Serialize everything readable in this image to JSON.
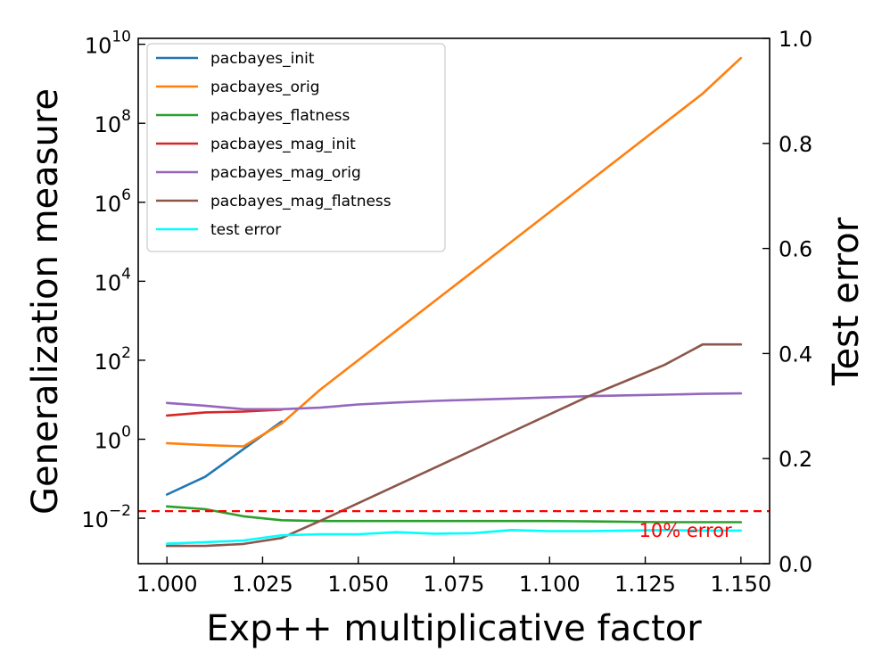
{
  "chart_data": {
    "type": "line",
    "xlabel": "Exp++ multiplicative factor",
    "ylabel": "Generalization measure",
    "y2label": "Test error",
    "x_ticks": [
      "1.000",
      "1.025",
      "1.050",
      "1.075",
      "1.100",
      "1.125",
      "1.150"
    ],
    "x_tick_values": [
      1.0,
      1.025,
      1.05,
      1.075,
      1.1,
      1.125,
      1.15
    ],
    "y_ticks": [
      {
        "base": "10",
        "exp": "10",
        "value": 10
      },
      {
        "base": "10",
        "exp": "8",
        "value": 8
      },
      {
        "base": "10",
        "exp": "6",
        "value": 6
      },
      {
        "base": "10",
        "exp": "4",
        "value": 4
      },
      {
        "base": "10",
        "exp": "2",
        "value": 2
      },
      {
        "base": "10",
        "exp": "0",
        "value": 0
      },
      {
        "base": "10",
        "exp": "−2",
        "value": -2
      }
    ],
    "y2_ticks": [
      "1.0",
      "0.8",
      "0.6",
      "0.4",
      "0.2",
      "0.0"
    ],
    "y2_tick_values": [
      1.0,
      0.8,
      0.6,
      0.4,
      0.2,
      0.0
    ],
    "xlim": [
      0.9925,
      1.1575
    ],
    "ylim_log10": [
      -3.15,
      10.15
    ],
    "y_scale": "log",
    "y2lim": [
      0.0,
      1.0
    ],
    "legend_position": "top-left",
    "grid": false,
    "series": [
      {
        "name": "pacbayes_init",
        "color": "#1f77b4",
        "axis": "left",
        "x": [
          1.0,
          1.01,
          1.02,
          1.03
        ],
        "log10_y": [
          -1.4,
          -0.95,
          -0.25,
          0.45
        ]
      },
      {
        "name": "pacbayes_orig",
        "color": "#ff7f0e",
        "axis": "left",
        "x": [
          1.0,
          1.01,
          1.02,
          1.03,
          1.04,
          1.05,
          1.06,
          1.07,
          1.08,
          1.09,
          1.1,
          1.11,
          1.12,
          1.13,
          1.14,
          1.15
        ],
        "log10_y": [
          -0.1,
          -0.15,
          -0.18,
          0.4,
          1.25,
          2.0,
          2.75,
          3.5,
          4.25,
          5.0,
          5.75,
          6.5,
          7.25,
          8.0,
          8.75,
          9.65
        ]
      },
      {
        "name": "pacbayes_flatness",
        "color": "#2ca02c",
        "axis": "left",
        "x": [
          1.0,
          1.01,
          1.02,
          1.03,
          1.04,
          1.05,
          1.06,
          1.07,
          1.08,
          1.09,
          1.1,
          1.11,
          1.12,
          1.13,
          1.14,
          1.15
        ],
        "log10_y": [
          -1.7,
          -1.77,
          -1.95,
          -2.05,
          -2.07,
          -2.07,
          -2.07,
          -2.07,
          -2.07,
          -2.07,
          -2.07,
          -2.08,
          -2.09,
          -2.1,
          -2.1,
          -2.1
        ]
      },
      {
        "name": "pacbayes_mag_init",
        "color": "#d62728",
        "axis": "left",
        "x": [
          1.0,
          1.01,
          1.02,
          1.03
        ],
        "log10_y": [
          0.6,
          0.68,
          0.7,
          0.75
        ]
      },
      {
        "name": "pacbayes_mag_orig",
        "color": "#9467bd",
        "axis": "left",
        "x": [
          1.0,
          1.01,
          1.02,
          1.03,
          1.04,
          1.05,
          1.06,
          1.07,
          1.08,
          1.09,
          1.1,
          1.11,
          1.12,
          1.13,
          1.14,
          1.15
        ],
        "log10_y": [
          0.92,
          0.85,
          0.76,
          0.76,
          0.8,
          0.88,
          0.93,
          0.97,
          1.0,
          1.03,
          1.06,
          1.09,
          1.11,
          1.13,
          1.15,
          1.16
        ]
      },
      {
        "name": "pacbayes_mag_flatness",
        "color": "#8c564b",
        "axis": "left",
        "x": [
          1.0,
          1.01,
          1.02,
          1.03,
          1.04,
          1.05,
          1.06,
          1.07,
          1.08,
          1.09,
          1.1,
          1.11,
          1.12,
          1.13,
          1.14,
          1.15
        ],
        "log10_y": [
          -2.7,
          -2.7,
          -2.65,
          -2.5,
          -2.07,
          -1.62,
          -1.17,
          -0.72,
          -0.27,
          0.18,
          0.63,
          1.08,
          1.48,
          1.88,
          2.4,
          2.4
        ]
      },
      {
        "name": "test error",
        "color": "#00ffff",
        "axis": "right",
        "x": [
          1.0,
          1.01,
          1.02,
          1.03,
          1.04,
          1.05,
          1.06,
          1.07,
          1.08,
          1.09,
          1.1,
          1.11,
          1.12,
          1.13,
          1.14,
          1.15
        ],
        "y": [
          0.038,
          0.041,
          0.044,
          0.054,
          0.056,
          0.056,
          0.06,
          0.057,
          0.058,
          0.064,
          0.062,
          0.062,
          0.063,
          0.064,
          0.063,
          0.063
        ]
      }
    ],
    "annotations": [
      {
        "text": "10% error",
        "color": "#ff0000",
        "style": "dashed-line",
        "axis": "right",
        "y": 0.1
      }
    ]
  }
}
